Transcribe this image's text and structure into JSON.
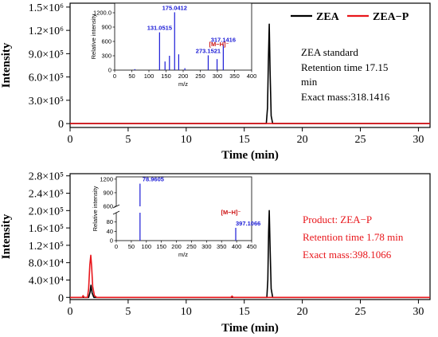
{
  "colors": {
    "zea": "#000000",
    "zea_p": "#e8161b",
    "inset": "#1b1bd6",
    "ion": "#cc1111"
  },
  "chart_data": [
    {
      "type": "line",
      "panel": "top",
      "xlabel": "Time (min)",
      "ylabel": "Intensity",
      "xlim": [
        0,
        31
      ],
      "ylim": [
        -50000,
        1550000
      ],
      "x_ticks": [
        0,
        5,
        10,
        15,
        20,
        25,
        30
      ],
      "x_tick_labels": [
        "0",
        "5",
        "10",
        "15",
        "20",
        "25",
        "30"
      ],
      "y_ticks": [
        0,
        300000,
        600000,
        900000,
        1200000,
        1500000
      ],
      "y_tick_labels": [
        "0",
        "3.0×10⁵",
        "6.0×10⁵",
        "9.0×10⁵",
        "1.2×10⁶",
        "1.5×10⁶"
      ],
      "legend": {
        "placement": "top-right",
        "entries": [
          "ZEA",
          "ZEA−P"
        ]
      },
      "series": [
        {
          "name": "ZEA",
          "color": "#000000",
          "points": [
            [
              0,
              0
            ],
            [
              16.9,
              0
            ],
            [
              17.0,
              200000
            ],
            [
              17.08,
              800000
            ],
            [
              17.15,
              1280000
            ],
            [
              17.22,
              700000
            ],
            [
              17.32,
              100000
            ],
            [
              17.45,
              0
            ],
            [
              31,
              0
            ]
          ]
        },
        {
          "name": "ZEA−P",
          "color": "#e8161b",
          "points": [
            [
              0,
              0
            ],
            [
              31,
              0
            ]
          ]
        }
      ],
      "annotation": [
        "ZEA standard",
        "Retention time 17.15",
        "min",
        "Exact mass:318.1416"
      ],
      "inset": {
        "type": "bar",
        "xlabel": "m/z",
        "ylabel": "Relative intensity",
        "xlim": [
          0,
          400
        ],
        "ylim": [
          0,
          1400
        ],
        "x_ticks": [
          0,
          50,
          100,
          150,
          200,
          250,
          300,
          350,
          400
        ],
        "y_ticks": [
          0,
          300,
          600,
          900,
          1200
        ],
        "y_tick_labels": [
          "0",
          "300",
          "600",
          "900",
          "1200.0"
        ],
        "peaks": [
          {
            "mz": 59,
            "intensity": 20
          },
          {
            "mz": 131.0515,
            "intensity": 790,
            "label": "131.0515"
          },
          {
            "mz": 147,
            "intensity": 180
          },
          {
            "mz": 160,
            "intensity": 300
          },
          {
            "mz": 175.0412,
            "intensity": 1210,
            "label": "175.0412"
          },
          {
            "mz": 187,
            "intensity": 330
          },
          {
            "mz": 205,
            "intensity": 40
          },
          {
            "mz": 273.1521,
            "intensity": 310,
            "label": "273.1521"
          },
          {
            "mz": 299,
            "intensity": 230
          },
          {
            "mz": 317.1416,
            "intensity": 540,
            "label": "317.1416"
          }
        ],
        "ion_label": "[M−H]⁻"
      }
    },
    {
      "type": "line",
      "panel": "bottom",
      "xlabel": "Time (min)",
      "ylabel": "Intensity",
      "xlim": [
        0,
        31
      ],
      "ylim": [
        -5000,
        285000
      ],
      "x_ticks": [
        0,
        5,
        10,
        15,
        20,
        25,
        30
      ],
      "x_tick_labels": [
        "0",
        "5",
        "10",
        "15",
        "20",
        "25",
        "30"
      ],
      "y_ticks": [
        0,
        40000,
        80000,
        120000,
        160000,
        200000,
        240000,
        280000
      ],
      "y_tick_labels": [
        "0",
        "4.0×10⁴",
        "8.0×10⁴",
        "1.2×10⁵",
        "1.6×10⁵",
        "2.0×10⁵",
        "2.4×10⁵",
        "2.8×10⁵"
      ],
      "series": [
        {
          "name": "ZEA",
          "color": "#000000",
          "points": [
            [
              0,
              0
            ],
            [
              1.6,
              0
            ],
            [
              1.72,
              12000
            ],
            [
              1.8,
              28000
            ],
            [
              1.9,
              10000
            ],
            [
              2.05,
              0
            ],
            [
              16.95,
              0
            ],
            [
              17.03,
              40000
            ],
            [
              17.1,
              150000
            ],
            [
              17.15,
              200000
            ],
            [
              17.22,
              120000
            ],
            [
              17.32,
              20000
            ],
            [
              17.45,
              0
            ],
            [
              31,
              0
            ]
          ]
        },
        {
          "name": "ZEA−P",
          "color": "#e8161b",
          "points": [
            [
              0,
              0
            ],
            [
              1.05,
              0
            ],
            [
              1.12,
              4000
            ],
            [
              1.22,
              0
            ],
            [
              1.5,
              0
            ],
            [
              1.6,
              20000
            ],
            [
              1.7,
              75000
            ],
            [
              1.78,
              97000
            ],
            [
              1.86,
              70000
            ],
            [
              1.95,
              25000
            ],
            [
              2.1,
              4000
            ],
            [
              2.3,
              0
            ],
            [
              13.85,
              0
            ],
            [
              13.95,
              3000
            ],
            [
              14.05,
              0
            ],
            [
              31,
              0
            ]
          ]
        }
      ],
      "annotation": [
        "Product: ZEA−P",
        "Retention time 1.78 min",
        "Exact mass:398.1066"
      ],
      "inset": {
        "type": "bar",
        "xlabel": "m/z",
        "ylabel": "Relative intensity",
        "xlim": [
          0,
          450
        ],
        "y_break": true,
        "lower_ylim": [
          0,
          120
        ],
        "upper_ylim": [
          600,
          1250
        ],
        "x_ticks": [
          0,
          50,
          100,
          150,
          200,
          250,
          300,
          350,
          400,
          450
        ],
        "lower_y_ticks": [
          0,
          40,
          80
        ],
        "upper_y_ticks": [
          600,
          900,
          1200
        ],
        "peaks": [
          {
            "mz": 78.9605,
            "intensity": 1100,
            "label": "78.9605"
          },
          {
            "mz": 397.1066,
            "intensity": 55,
            "label": "397.1066"
          }
        ],
        "ion_label": "[M−H]⁻"
      }
    }
  ]
}
